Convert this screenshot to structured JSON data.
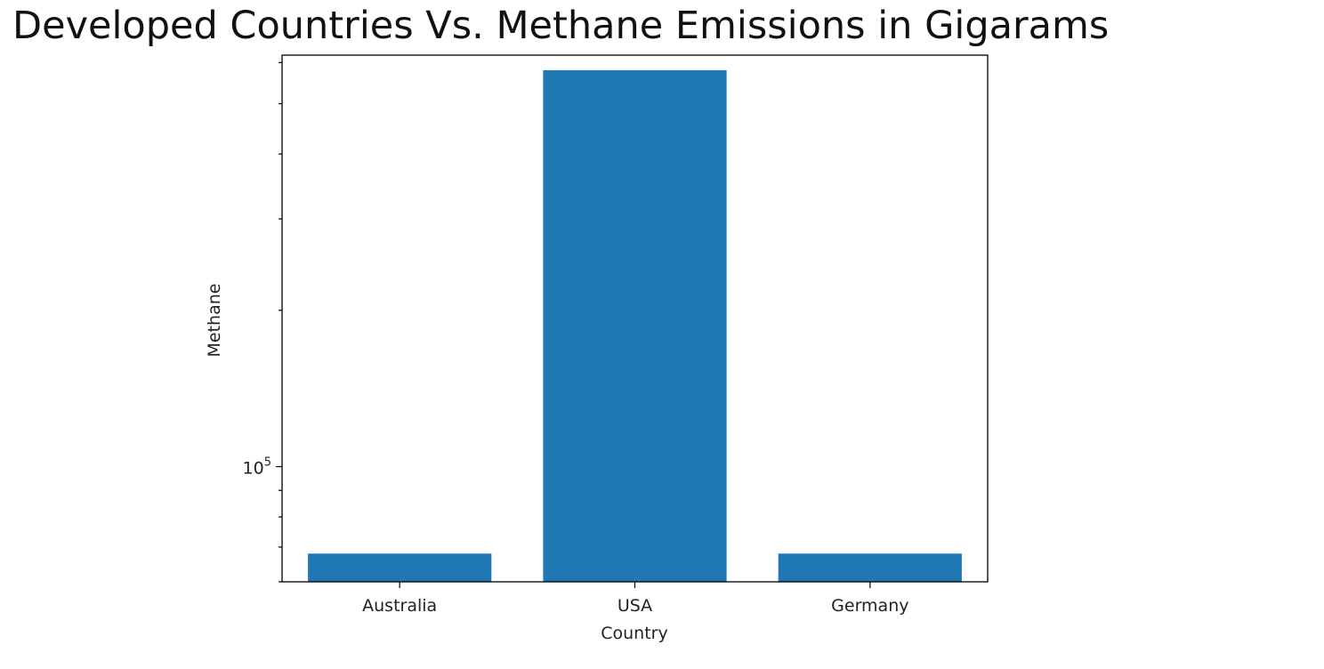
{
  "chart_data": {
    "type": "bar",
    "title": "Developed Countries Vs. Methane Emissions in Gigarams",
    "xlabel": "Country",
    "ylabel": "Methane",
    "categories": [
      "Australia",
      "USA",
      "Germany"
    ],
    "values": [
      68000,
      580000,
      68000
    ],
    "yscale": "log",
    "ylim": [
      60000,
      620000
    ],
    "y_major_ticks": [
      {
        "value": 100000,
        "label_base": "10",
        "label_exp": "5"
      }
    ],
    "grid": false,
    "bar_color": "#1f77b4"
  }
}
